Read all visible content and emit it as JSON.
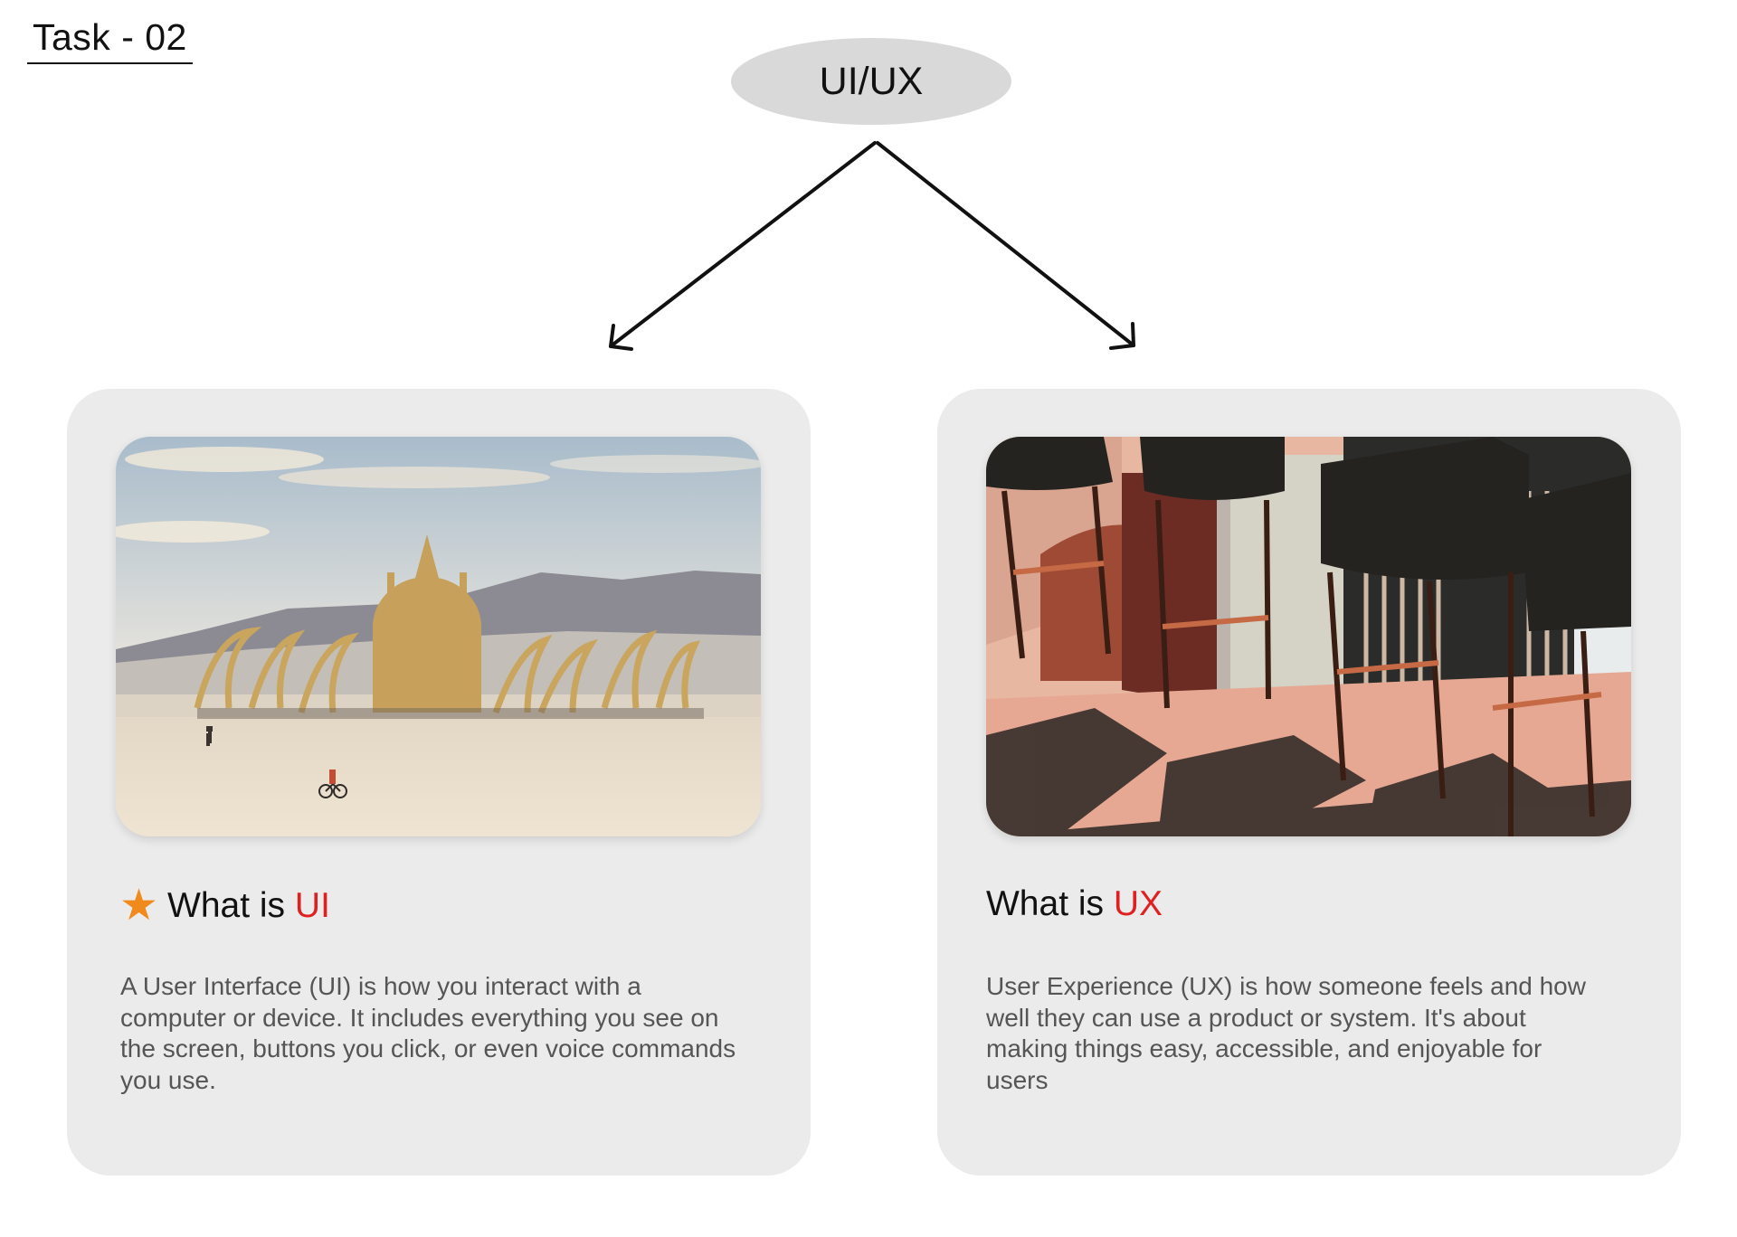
{
  "task_label": "Task - 02",
  "root_node": {
    "label": "UI/UX"
  },
  "colors": {
    "accent": "#e02020",
    "star": "#f08a1c",
    "card_bg": "#ebebeb",
    "node_bg": "#d9d9d9",
    "body_text": "#555555"
  },
  "cards": [
    {
      "heading_prefix": "What is ",
      "heading_accent": "UI",
      "icon": "star-icon",
      "image": "desert-festival-dome-photo",
      "description": "A User Interface (UI) is how you interact  with a computer or device. It includes  everything you see on the screen, buttons  you click, or even voice commands you use."
    },
    {
      "heading_prefix": "What is ",
      "heading_accent": "UX",
      "image": "bar-stools-shadows-photo",
      "description": "User Experience (UX) is how someone feels and how well they can use a product or system. It's about making things easy, accessible, and enjoyable for users"
    }
  ]
}
